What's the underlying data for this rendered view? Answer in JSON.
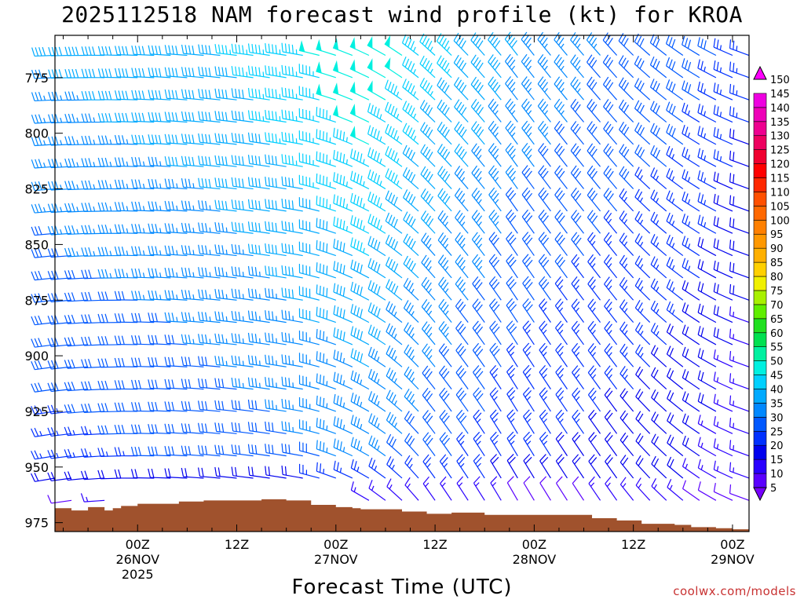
{
  "chart_data": {
    "type": "wind-barb-time-height",
    "title": "2025112518 NAM forecast wind profile (kt) for KROA",
    "xlabel": "Forecast Time (UTC)",
    "ylabel": "",
    "y_axis": {
      "range": [
        979,
        756
      ],
      "unit": "hPa",
      "ticks": [
        775,
        800,
        825,
        850,
        875,
        900,
        925,
        950,
        975
      ]
    },
    "x_axis": {
      "range_hours": [
        -10,
        74
      ],
      "ticks": [
        {
          "hour": 0,
          "line1": "00Z",
          "line2": "26NOV",
          "line3": "2025"
        },
        {
          "hour": 12,
          "line1": "12Z",
          "line2": "",
          "line3": ""
        },
        {
          "hour": 24,
          "line1": "00Z",
          "line2": "27NOV",
          "line3": ""
        },
        {
          "hour": 36,
          "line1": "12Z",
          "line2": "",
          "line3": ""
        },
        {
          "hour": 48,
          "line1": "00Z",
          "line2": "28NOV",
          "line3": ""
        },
        {
          "hour": 60,
          "line1": "12Z",
          "line2": "",
          "line3": ""
        },
        {
          "hour": 72,
          "line1": "00Z",
          "line2": "29NOV",
          "line3": ""
        }
      ]
    },
    "colorbar": {
      "levels": [
        5,
        10,
        15,
        20,
        25,
        30,
        35,
        40,
        45,
        50,
        55,
        60,
        65,
        70,
        75,
        80,
        85,
        90,
        95,
        100,
        105,
        110,
        115,
        120,
        125,
        130,
        135,
        140,
        145,
        150
      ],
      "colors": [
        "#7700ff",
        "#5a00ff",
        "#2a00ff",
        "#0000ee",
        "#0030ff",
        "#0058ff",
        "#0088ff",
        "#00aaff",
        "#00d0ff",
        "#00f0e0",
        "#00f0a0",
        "#00e050",
        "#20e020",
        "#60ee00",
        "#a8f000",
        "#f0f000",
        "#ffd000",
        "#ffb000",
        "#ff9800",
        "#ff8000",
        "#ff6800",
        "#ff5000",
        "#ff2800",
        "#ff0000",
        "#f00030",
        "#ee0060",
        "#ee0090",
        "#ee00b8",
        "#ee00e0",
        "#ff00ff"
      ]
    },
    "terrain": {
      "color": "#a0522d",
      "hours": [
        -10,
        -8,
        -6,
        -4,
        -3,
        -2,
        0,
        2,
        5,
        8,
        12,
        15,
        18,
        21,
        24,
        26,
        27,
        29,
        32,
        35,
        38,
        42,
        48,
        55,
        58,
        61,
        63,
        65,
        67,
        70,
        72,
        74
      ],
      "surface_hpa": [
        968.5,
        969.5,
        968.0,
        969.5,
        968.5,
        967.5,
        966.5,
        966.5,
        965.5,
        965.0,
        965.0,
        964.5,
        965.0,
        967.0,
        968.0,
        968.5,
        969.0,
        969.0,
        970.0,
        971.0,
        970.5,
        971.5,
        971.5,
        973.0,
        974.0,
        975.5,
        975.5,
        976.0,
        977.0,
        977.5,
        978.0,
        978.0
      ]
    },
    "wind_profile": {
      "levels_hpa": [
        765,
        775,
        785,
        795,
        805,
        815,
        825,
        835,
        845,
        855,
        865,
        875,
        885,
        895,
        905,
        915,
        925,
        935,
        945,
        955,
        965
      ],
      "hours": [
        -10,
        -8,
        -6,
        -4,
        -2,
        0,
        2,
        4,
        6,
        8,
        10,
        12,
        14,
        16,
        18,
        20,
        22,
        24,
        26,
        28,
        30,
        32,
        34,
        36,
        38,
        40,
        42,
        44,
        46,
        48,
        50,
        52,
        54,
        56,
        58,
        60,
        62,
        64,
        66,
        68,
        70,
        72,
        74
      ],
      "keyframes": [
        {
          "hour": -10,
          "dir_low": 260,
          "dir_high": 268,
          "spd_low": 24,
          "spd_high": 38
        },
        {
          "hour": 0,
          "dir_low": 270,
          "dir_high": 272,
          "spd_low": 26,
          "spd_high": 40
        },
        {
          "hour": 10,
          "dir_low": 275,
          "dir_high": 276,
          "spd_low": 28,
          "spd_high": 42
        },
        {
          "hour": 20,
          "dir_low": 280,
          "dir_high": 280,
          "spd_low": 30,
          "spd_high": 47
        },
        {
          "hour": 28,
          "dir_low": 300,
          "dir_high": 295,
          "spd_low": 32,
          "spd_high": 52
        },
        {
          "hour": 36,
          "dir_low": 325,
          "dir_high": 312,
          "spd_low": 28,
          "spd_high": 45
        },
        {
          "hour": 46,
          "dir_low": 330,
          "dir_high": 322,
          "spd_low": 22,
          "spd_high": 38
        },
        {
          "hour": 58,
          "dir_low": 325,
          "dir_high": 318,
          "spd_low": 20,
          "spd_high": 32
        },
        {
          "hour": 66,
          "dir_low": 310,
          "dir_high": 305,
          "spd_low": 18,
          "spd_high": 30
        },
        {
          "hour": 74,
          "dir_low": 290,
          "dir_high": 290,
          "spd_low": 12,
          "spd_high": 25
        }
      ]
    }
  },
  "watermark": "coolwx.com/models"
}
